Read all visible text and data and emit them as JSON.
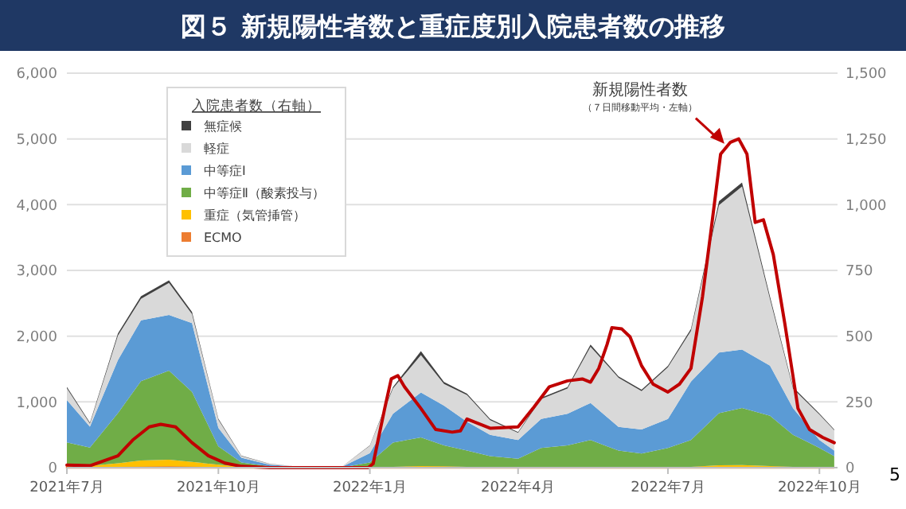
{
  "chart_data": {
    "type": "area",
    "title": "図５ 新規陽性者数と重症度別入院患者数の推移",
    "stacked": true,
    "legend": "top left",
    "legend_title": "入院患者数（右軸）",
    "grid": "y",
    "x": [
      "2021-07-01",
      "2021-07-15",
      "2021-08-01",
      "2021-08-15",
      "2021-09-01",
      "2021-09-15",
      "2021-10-01",
      "2021-10-15",
      "2021-11-01",
      "2021-11-15",
      "2021-12-01",
      "2021-12-15",
      "2022-01-01",
      "2022-01-15",
      "2022-02-01",
      "2022-02-15",
      "2022-03-01",
      "2022-03-15",
      "2022-04-01",
      "2022-04-15",
      "2022-05-01",
      "2022-05-15",
      "2022-06-01",
      "2022-06-15",
      "2022-07-01",
      "2022-07-15",
      "2022-08-01",
      "2022-08-15",
      "2022-09-01",
      "2022-09-15",
      "2022-10-01",
      "2022-10-10"
    ],
    "xlim": [
      "2021-07-01",
      "2022-10-12"
    ],
    "xticks": [
      {
        "value": "2021-07-01",
        "label": "2021年7月"
      },
      {
        "value": "2021-10-01",
        "label": "2021年10月"
      },
      {
        "value": "2022-01-01",
        "label": "2022年1月"
      },
      {
        "value": "2022-04-01",
        "label": "2022年4月"
      },
      {
        "value": "2022-07-01",
        "label": "2022年7月"
      },
      {
        "value": "2022-10-01",
        "label": "2022年10月"
      }
    ],
    "ylim": [
      0,
      6000
    ],
    "yticks": [
      0,
      {
        "value": 1000,
        "label": "1,000"
      },
      {
        "value": 2000,
        "label": "2,000"
      },
      {
        "value": 3000,
        "label": "3,000"
      },
      {
        "value": 4000,
        "label": "4,000"
      },
      {
        "value": 5000,
        "label": "5,000"
      },
      {
        "value": 6000,
        "label": "6,000"
      }
    ],
    "y2lim": [
      0,
      1500
    ],
    "y2ticks": [
      0,
      250,
      500,
      750,
      {
        "value": 1000,
        "label": "1,000"
      },
      {
        "value": 1250,
        "label": "1,250"
      },
      {
        "value": 1500,
        "label": "1,500"
      }
    ],
    "series": [
      {
        "name": "ECMO",
        "color": "#ed7d31",
        "axis": "y2",
        "values": [
          2,
          2,
          3,
          4,
          5,
          4,
          2,
          1,
          0,
          0,
          0,
          0,
          0,
          0,
          1,
          1,
          0,
          0,
          0,
          0,
          0,
          0,
          0,
          0,
          0,
          0,
          2,
          2,
          1,
          0,
          0,
          0
        ]
      },
      {
        "name": "重症（気管挿管）",
        "color": "#ffc000",
        "axis": "y2",
        "values": [
          7,
          5,
          14,
          23,
          25,
          18,
          9,
          2,
          1,
          0,
          0,
          0,
          1,
          3,
          5,
          4,
          3,
          2,
          1,
          2,
          2,
          2,
          1,
          1,
          2,
          3,
          7,
          8,
          5,
          3,
          2,
          1
        ]
      },
      {
        "name": "中等症Ⅱ（酸素投与）",
        "color": "#70ad47",
        "axis": "y2",
        "values": [
          87,
          69,
          190,
          302,
          339,
          266,
          70,
          17,
          4,
          2,
          1,
          1,
          19,
          92,
          109,
          80,
          62,
          42,
          33,
          73,
          83,
          103,
          64,
          53,
          73,
          102,
          198,
          217,
          191,
          122,
          73,
          43
        ]
      },
      {
        "name": "中等症Ⅰ",
        "color": "#5b9bd5",
        "axis": "y2",
        "values": [
          161,
          80,
          202,
          231,
          212,
          262,
          70,
          18,
          6,
          3,
          2,
          2,
          35,
          110,
          171,
          151,
          110,
          81,
          71,
          110,
          120,
          141,
          90,
          91,
          110,
          222,
          231,
          222,
          191,
          101,
          30,
          21
        ]
      },
      {
        "name": "軽症",
        "color": "#d9d9d9",
        "axis": "y2",
        "values": [
          45,
          11,
          93,
          82,
          121,
          34,
          31,
          6,
          3,
          1,
          1,
          1,
          28,
          96,
          142,
          82,
          101,
          56,
          27,
          76,
          96,
          214,
          187,
          146,
          197,
          193,
          560,
          620,
          252,
          74,
          97,
          77
        ]
      },
      {
        "name": "無症候",
        "color": "#404040",
        "axis": "y2",
        "values": [
          5,
          4,
          8,
          10,
          10,
          8,
          4,
          1,
          1,
          0,
          0,
          0,
          2,
          5,
          15,
          8,
          5,
          4,
          3,
          5,
          5,
          8,
          5,
          5,
          5,
          8,
          15,
          15,
          10,
          6,
          4,
          3
        ]
      },
      {
        "name": "新規陽性者数",
        "type": "line",
        "color": "#c00000",
        "x": [
          "2021-07-01",
          "2021-07-15",
          "2021-08-01",
          "2021-08-10",
          "2021-08-20",
          "2021-08-27",
          "2021-09-05",
          "2021-09-15",
          "2021-09-25",
          "2021-10-05",
          "2021-10-15",
          "2021-11-01",
          "2021-12-01",
          "2021-12-31",
          "2022-01-03",
          "2022-01-06",
          "2022-01-10",
          "2022-01-14",
          "2022-01-18",
          "2022-01-22",
          "2022-02-01",
          "2022-02-10",
          "2022-02-20",
          "2022-02-25",
          "2022-03-01",
          "2022-03-15",
          "2022-04-01",
          "2022-04-10",
          "2022-04-20",
          "2022-05-01",
          "2022-05-10",
          "2022-05-15",
          "2022-05-20",
          "2022-05-25",
          "2022-05-28",
          "2022-06-03",
          "2022-06-08",
          "2022-06-15",
          "2022-06-22",
          "2022-07-01",
          "2022-07-08",
          "2022-07-15",
          "2022-07-22",
          "2022-07-27",
          "2022-08-02",
          "2022-08-08",
          "2022-08-13",
          "2022-08-18",
          "2022-08-23",
          "2022-08-28",
          "2022-09-03",
          "2022-09-10",
          "2022-09-18",
          "2022-09-25",
          "2022-10-03",
          "2022-10-10"
        ],
        "values": [
          40,
          30,
          180,
          420,
          620,
          660,
          620,
          380,
          180,
          70,
          20,
          0,
          0,
          0,
          60,
          420,
          900,
          1350,
          1400,
          1230,
          900,
          580,
          540,
          560,
          740,
          600,
          620,
          900,
          1230,
          1320,
          1350,
          1300,
          1510,
          1870,
          2130,
          2110,
          1990,
          1550,
          1270,
          1150,
          1270,
          1510,
          2600,
          3570,
          4770,
          4950,
          5000,
          4770,
          3730,
          3770,
          3240,
          2190,
          900,
          580,
          460,
          380
        ]
      }
    ],
    "annotations": [
      "（７日間移動平均・左軸）",
      "5"
    ]
  }
}
